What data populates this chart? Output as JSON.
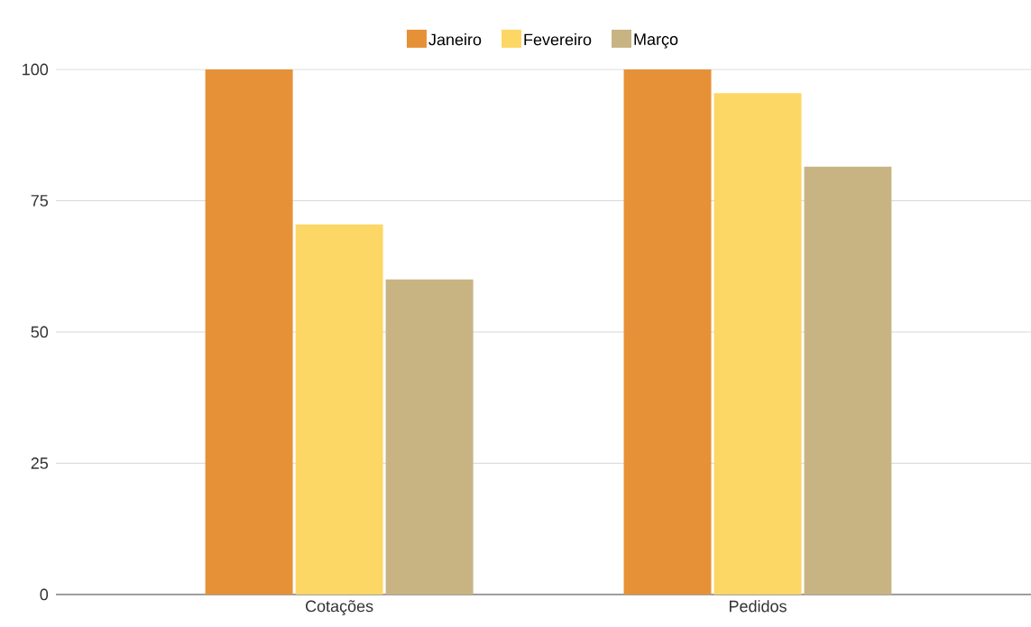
{
  "chart_data": {
    "type": "bar",
    "categories": [
      "Cotações",
      "Pedidos"
    ],
    "series": [
      {
        "name": "Janeiro",
        "color": "#e69138",
        "values": [
          100,
          100
        ]
      },
      {
        "name": "Fevereiro",
        "color": "#fcd766",
        "values": [
          70.5,
          95.5
        ]
      },
      {
        "name": "Março",
        "color": "#c8b483",
        "values": [
          60,
          81.5
        ]
      }
    ],
    "ylim": [
      0,
      100
    ],
    "yticks": [
      0,
      25,
      50,
      75,
      100
    ],
    "grid": "y",
    "legend": "top"
  }
}
